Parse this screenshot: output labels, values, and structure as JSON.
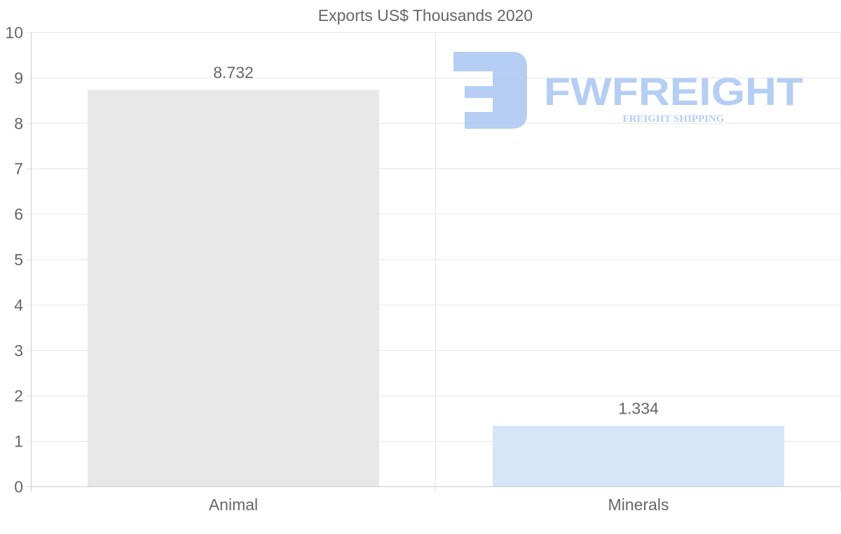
{
  "chart_data": {
    "type": "bar",
    "title": "Exports US$ Thousands 2020",
    "categories": [
      "Animal",
      "Minerals"
    ],
    "values": [
      8.732,
      1.334
    ],
    "data_labels": [
      "8.732",
      "1.334"
    ],
    "bar_colors": [
      "#e8e8e8",
      "#d6e6f8"
    ],
    "xlabel": "",
    "ylabel": "",
    "ylim": [
      0,
      10
    ],
    "yticks": [
      "0",
      "1",
      "2",
      "3",
      "4",
      "5",
      "6",
      "7",
      "8",
      "9",
      "10"
    ],
    "grid": true,
    "legend": "none"
  },
  "watermark": {
    "name": "FWFREIGHT",
    "tagline": "FREIGHT SHIPPING",
    "color": "#a9c6f2"
  }
}
